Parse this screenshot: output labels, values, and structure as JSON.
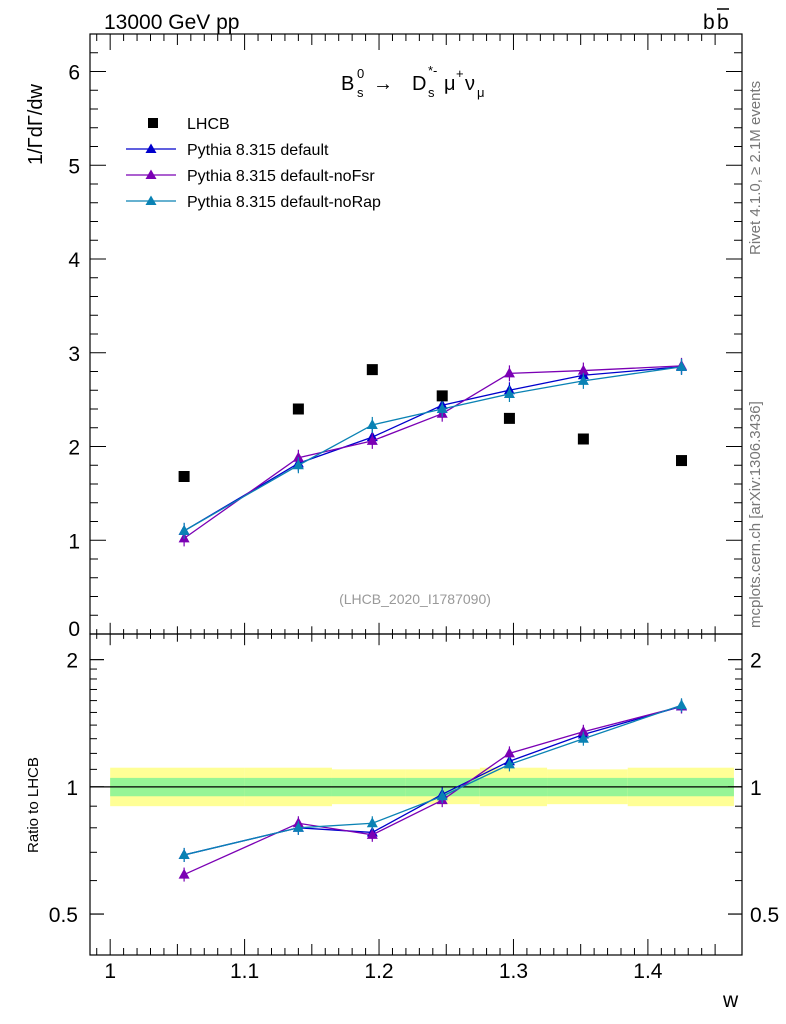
{
  "header": {
    "left": "13000 GeV pp",
    "right": "b",
    "right_bar": "b"
  },
  "side_labels": {
    "top": "Rivet 4.1.0, ≥ 2.1M events",
    "bottom": "mcplots.cern.ch [arXiv:1306.3436]"
  },
  "process": {
    "Bs": "B",
    "Bs_sup": "0",
    "Bs_sub": "s",
    "arrow": "→",
    "Ds": "D",
    "Ds_sup": "*-",
    "Ds_sub": "s",
    "mu": "μ",
    "mu_sup": "+",
    "nu": "ν",
    "nu_sub": "μ"
  },
  "analysis_id": "(LHCB_2020_I1787090)",
  "colors": {
    "data": "#000000",
    "default": "#0000cc",
    "noFsr": "#7b00b4",
    "noRap": "#0a82b4",
    "band_inner": "#96f596",
    "band_outer": "#ffff96"
  },
  "chart_data": [
    {
      "type": "scatter",
      "panel": "main",
      "ylabel": "1/ΓdΓ/dw",
      "xlabel": "",
      "xlim": [
        0.985,
        1.47
      ],
      "ylim": [
        0,
        6.4
      ],
      "yticks": [
        0,
        1,
        2,
        3,
        4,
        5,
        6
      ],
      "ytick_labels": [
        "0",
        "1",
        "2",
        "3",
        "4",
        "5",
        "6"
      ],
      "legend": [
        "LHCB",
        "Pythia 8.315 default",
        "Pythia 8.315 default-noFsr",
        "Pythia 8.315 default-noRap"
      ],
      "legend_position": "top-left",
      "x": [
        1.055,
        1.14,
        1.195,
        1.247,
        1.297,
        1.352,
        1.425
      ],
      "series": [
        {
          "name": "LHCB",
          "marker": "square",
          "values": [
            1.68,
            2.4,
            2.82,
            2.54,
            2.3,
            2.08,
            1.85
          ]
        },
        {
          "name": "Pythia 8.315 default",
          "marker": "triangle",
          "values": [
            1.1,
            1.82,
            2.1,
            2.44,
            2.6,
            2.76,
            2.85
          ]
        },
        {
          "name": "Pythia 8.315 default-noFsr",
          "marker": "triangle",
          "values": [
            1.02,
            1.88,
            2.06,
            2.35,
            2.78,
            2.81,
            2.86
          ]
        },
        {
          "name": "Pythia 8.315 default-noRap",
          "marker": "triangle",
          "values": [
            1.1,
            1.8,
            2.23,
            2.4,
            2.56,
            2.7,
            2.85
          ]
        }
      ]
    },
    {
      "type": "line",
      "panel": "ratio",
      "ylabel": "Ratio to LHCB",
      "xlabel": "w",
      "xlim": [
        0.985,
        1.47
      ],
      "ylim": [
        0.4,
        2.3
      ],
      "yscale": "log",
      "yticks": [
        0.5,
        1,
        2
      ],
      "ytick_labels": [
        "0.5",
        "1",
        "2"
      ],
      "xticks": [
        1.0,
        1.1,
        1.2,
        1.3,
        1.4
      ],
      "xtick_labels": [
        "1",
        "1.1",
        "1.2",
        "1.3",
        "1.4"
      ],
      "band_edges": [
        0.985,
        1.1,
        1.165,
        1.22,
        1.275,
        1.325,
        1.385,
        1.47
      ],
      "band_outer": [
        [
          0.9,
          1.11
        ],
        [
          0.9,
          1.11
        ],
        [
          0.91,
          1.1
        ],
        [
          0.91,
          1.1
        ],
        [
          0.9,
          1.11
        ],
        [
          0.91,
          1.1
        ],
        [
          0.9,
          1.11
        ]
      ],
      "band_inner": [
        [
          0.95,
          1.05
        ],
        [
          0.95,
          1.05
        ],
        [
          0.95,
          1.05
        ],
        [
          0.95,
          1.05
        ],
        [
          0.95,
          1.05
        ],
        [
          0.95,
          1.05
        ],
        [
          0.95,
          1.05
        ]
      ],
      "x": [
        1.055,
        1.14,
        1.195,
        1.247,
        1.297,
        1.352,
        1.425
      ],
      "series": [
        {
          "name": "Pythia 8.315 default",
          "values": [
            0.69,
            0.8,
            0.78,
            0.96,
            1.15,
            1.33,
            1.55
          ]
        },
        {
          "name": "Pythia 8.315 default-noFsr",
          "values": [
            0.62,
            0.82,
            0.77,
            0.93,
            1.2,
            1.35,
            1.55
          ]
        },
        {
          "name": "Pythia 8.315 default-noRap",
          "values": [
            0.69,
            0.8,
            0.82,
            0.95,
            1.13,
            1.3,
            1.56
          ]
        }
      ]
    }
  ]
}
